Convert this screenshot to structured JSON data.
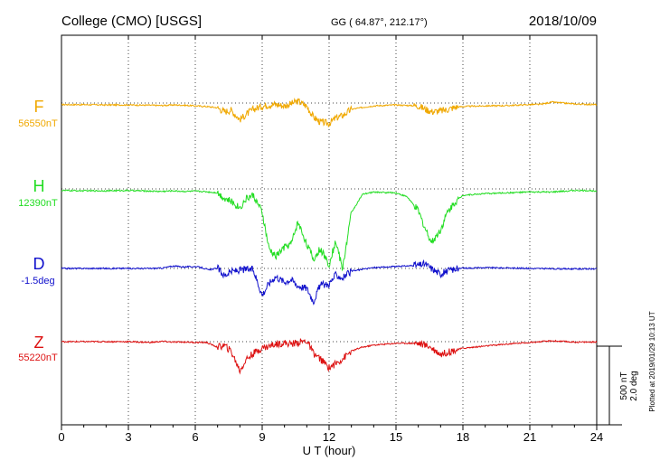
{
  "chart_data": {
    "type": "line",
    "title": "College (CMO)  [USGS]",
    "subtitle": "GG ( 64.87°, 212.17°)",
    "date": "2018/10/09",
    "xlabel": "U T (hour)",
    "xlim": [
      0,
      24
    ],
    "xticks": [
      "0",
      "3",
      "6",
      "9",
      "12",
      "15",
      "18",
      "21",
      "24"
    ],
    "grid": true,
    "scale_bar": {
      "nt_label": "500 nT",
      "deg_label": "2.0 deg"
    },
    "footer": "Plotted at 2019/01/29 10:13 UT",
    "series": [
      {
        "name": "F",
        "baseline_label": "56550nT",
        "color": "#f0a800",
        "x": [
          0,
          1,
          2,
          3,
          4,
          4.5,
          5,
          5.5,
          6,
          6.5,
          7,
          7.3,
          7.6,
          8,
          8.3,
          8.6,
          9,
          9.3,
          9.6,
          10,
          10.3,
          10.6,
          11,
          11.3,
          11.6,
          12,
          12.3,
          12.6,
          13,
          13.5,
          14,
          15,
          16,
          16.3,
          16.6,
          17,
          17.3,
          17.6,
          18,
          19,
          20,
          21,
          21.5,
          22,
          23,
          24
        ],
        "y": [
          -10,
          -10,
          -12,
          -12,
          -14,
          -16,
          -12,
          -14,
          -18,
          -22,
          -30,
          -55,
          -45,
          -105,
          -70,
          -40,
          -20,
          -12,
          -8,
          -18,
          -5,
          12,
          -20,
          -90,
          -120,
          -130,
          -95,
          -80,
          -40,
          -28,
          -18,
          -12,
          -18,
          -38,
          -55,
          -50,
          -42,
          -28,
          -22,
          -18,
          -16,
          -10,
          -8,
          6,
          -6,
          -10
        ]
      },
      {
        "name": "H",
        "baseline_label": "12390nT",
        "color": "#22dd22",
        "x": [
          0,
          1,
          2,
          3,
          4,
          4.5,
          5,
          5.5,
          6,
          6.5,
          7,
          7.3,
          7.6,
          8,
          8.3,
          8.6,
          9,
          9.3,
          9.6,
          10,
          10.3,
          10.6,
          11,
          11.3,
          11.6,
          12,
          12.3,
          12.6,
          13,
          13.5,
          14,
          15,
          15.5,
          16,
          16.3,
          16.6,
          17,
          17.3,
          17.6,
          18,
          19,
          20,
          21,
          22,
          23,
          24
        ],
        "y": [
          -10,
          -12,
          -12,
          -10,
          -14,
          -16,
          -12,
          -16,
          -14,
          -18,
          -25,
          -60,
          -80,
          -120,
          -60,
          -40,
          -150,
          -380,
          -430,
          -370,
          -350,
          -210,
          -350,
          -450,
          -380,
          -480,
          -330,
          -510,
          -150,
          -35,
          -20,
          -25,
          -50,
          -140,
          -250,
          -340,
          -260,
          -150,
          -90,
          -40,
          -30,
          -25,
          -20,
          -20,
          -10,
          -12
        ]
      },
      {
        "name": "D",
        "baseline_label": "-1.5deg",
        "color": "#1010cc",
        "x": [
          0,
          1,
          2,
          3,
          4,
          4.5,
          5,
          5.5,
          6,
          6.3,
          6.6,
          7,
          7.3,
          7.6,
          8,
          8.3,
          8.6,
          9,
          9.3,
          9.6,
          10,
          10.3,
          10.6,
          11,
          11.3,
          11.6,
          12,
          12.3,
          12.6,
          13,
          13.5,
          14,
          15,
          16,
          16.3,
          16.6,
          17,
          17.3,
          17.6,
          18,
          19,
          20,
          21,
          22,
          23,
          24
        ],
        "y": [
          0,
          0,
          0,
          0,
          0,
          2,
          15,
          10,
          12,
          5,
          -10,
          2,
          -45,
          -20,
          -10,
          -5,
          -8,
          -170,
          -95,
          -50,
          -85,
          -70,
          -110,
          -125,
          -210,
          -105,
          -100,
          -40,
          -60,
          -18,
          -5,
          5,
          12,
          20,
          30,
          0,
          -35,
          -15,
          -5,
          2,
          5,
          3,
          0,
          -2,
          -3,
          -3
        ]
      },
      {
        "name": "Z",
        "baseline_label": "55220nT",
        "color": "#dd1111",
        "x": [
          0,
          1,
          2,
          3,
          4,
          4.5,
          5,
          5.5,
          6,
          6.5,
          7,
          7.3,
          7.6,
          8,
          8.3,
          8.6,
          9,
          9.3,
          9.6,
          10,
          10.3,
          10.6,
          11,
          11.3,
          11.6,
          12,
          12.3,
          12.6,
          13,
          13.5,
          14,
          15,
          16,
          16.5,
          17,
          17.3,
          17.6,
          18,
          19,
          20,
          21,
          22,
          23,
          24
        ],
        "y": [
          0,
          0,
          0,
          0,
          -5,
          2,
          -3,
          -2,
          -5,
          -5,
          -35,
          -25,
          -60,
          -185,
          -110,
          -75,
          -40,
          -30,
          -15,
          -8,
          -15,
          -5,
          5,
          -75,
          -110,
          -165,
          -140,
          -110,
          -60,
          -35,
          -22,
          -10,
          -10,
          -30,
          -80,
          -68,
          -55,
          -42,
          -28,
          -15,
          -5,
          5,
          -3,
          -2
        ]
      }
    ]
  }
}
